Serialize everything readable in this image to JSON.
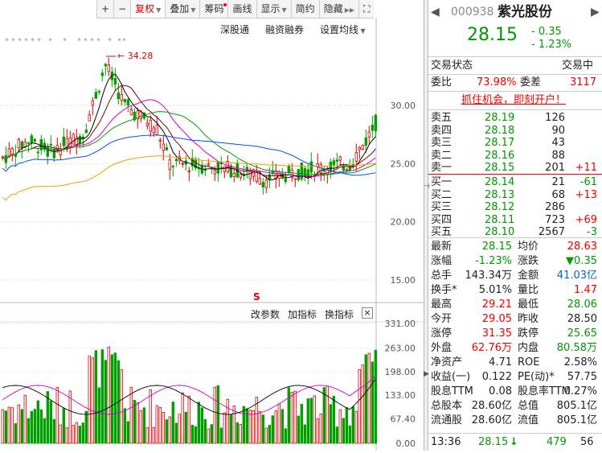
{
  "toolbar": {
    "items": [
      "+",
      "−",
      "复权",
      "叠加",
      "筹码",
      "画线",
      "显示",
      "简约",
      "隐藏"
    ],
    "fq_label": "复权",
    "overlay_label": "叠加",
    "chip_label": "筹码",
    "draw_label": "画线",
    "display_label": "显示",
    "simple_label": "简约",
    "hide_label": "隐藏"
  },
  "chart": {
    "links": {
      "sz": "深股通",
      "margin": "融资融券",
      "ma_setting": "设置均线"
    },
    "high_marker": "34.28",
    "price_ticks": [
      "30.00",
      "25.00",
      "20.00",
      "15.00"
    ],
    "s_marker": "S",
    "indicator_menu": {
      "change": "改参数",
      "add": "加指标",
      "swap": "换指标"
    },
    "vol_ticks": [
      "331.00",
      "263.00",
      "198.00",
      "133.00",
      "67.40",
      "0.00"
    ],
    "colors": {
      "up": "#e00000",
      "down": "#00a000",
      "ma5": "#000000",
      "ma10": "#800000",
      "ma20": "#d000d0",
      "ma30": "#00a000",
      "ma60": "#0050ff",
      "ma120": "#f0a000"
    }
  },
  "quote": {
    "code": "000938",
    "name": "紫光股份",
    "price": "28.15",
    "change": "- 0.35",
    "change_pct": "- 1.23%",
    "status_label": "交易状态",
    "status_value": "交易中",
    "wb_label": "委比",
    "wb_value": "73.98%",
    "wc_label": "委差",
    "wc_value": "3117",
    "promo": "抓住机会，即刻开户！"
  },
  "asks": [
    {
      "label": "卖五",
      "price": "28.19",
      "vol": "126",
      "chg": ""
    },
    {
      "label": "卖四",
      "price": "28.18",
      "vol": "90",
      "chg": ""
    },
    {
      "label": "卖三",
      "price": "28.17",
      "vol": "43",
      "chg": ""
    },
    {
      "label": "卖二",
      "price": "28.16",
      "vol": "88",
      "chg": ""
    },
    {
      "label": "卖一",
      "price": "28.15",
      "vol": "201",
      "chg": "+11"
    }
  ],
  "bids": [
    {
      "label": "买一",
      "price": "28.14",
      "vol": "21",
      "chg": "-61"
    },
    {
      "label": "买二",
      "price": "28.13",
      "vol": "68",
      "chg": "+13"
    },
    {
      "label": "买三",
      "price": "28.12",
      "vol": "286",
      "chg": ""
    },
    {
      "label": "买四",
      "price": "28.11",
      "vol": "723",
      "chg": "+69"
    },
    {
      "label": "买五",
      "price": "28.10",
      "vol": "2567",
      "chg": "-3"
    }
  ],
  "stats": [
    {
      "l1": "最新",
      "v1": "28.15",
      "c1": "green",
      "l2": "均价",
      "v2": "28.63",
      "c2": "red"
    },
    {
      "l1": "涨幅",
      "v1": "-1.23%",
      "c1": "green",
      "l2": "涨跌",
      "v2": "▼0.35",
      "c2": "green"
    },
    {
      "l1": "总手",
      "v1": "143.34万",
      "c1": "",
      "l2": "金额",
      "v2": "41.03亿",
      "c2": "blue"
    },
    {
      "l1": "换手*",
      "v1": "5.01%",
      "c1": "",
      "l2": "量比",
      "v2": "1.47",
      "c2": "red"
    },
    {
      "l1": "最高",
      "v1": "29.21",
      "c1": "red",
      "l2": "最低",
      "v2": "28.06",
      "c2": "green"
    },
    {
      "l1": "今开",
      "v1": "29.05",
      "c1": "red",
      "l2": "昨收",
      "v2": "28.50",
      "c2": ""
    },
    {
      "l1": "涨停",
      "v1": "31.35",
      "c1": "red",
      "l2": "跌停",
      "v2": "25.65",
      "c2": "green"
    },
    {
      "l1": "外盘",
      "v1": "62.76万",
      "c1": "red",
      "l2": "内盘",
      "v2": "80.58万",
      "c2": "green"
    },
    {
      "l1": "净资产",
      "v1": "4.71",
      "c1": "",
      "l2": "ROE",
      "v2": "2.58%",
      "c2": ""
    },
    {
      "l1": "收益(一)",
      "v1": "0.122",
      "c1": "",
      "l2": "PE(动)*",
      "v2": "57.75",
      "c2": ""
    },
    {
      "l1": "股息TTM",
      "v1": "0.08",
      "c1": "",
      "l2": "股息率TTM",
      "v2": "0.27%",
      "c2": ""
    },
    {
      "l1": "总股本",
      "v1": "28.60亿",
      "c1": "",
      "l2": "总值",
      "v2": "805.1亿",
      "c2": ""
    },
    {
      "l1": "流通股",
      "v1": "28.60亿",
      "c1": "",
      "l2": "流值",
      "v2": "805.1亿",
      "c2": ""
    }
  ],
  "tick": {
    "time": "13:36",
    "price": "28.15",
    "dir": "↓",
    "vol": "479",
    "count": "56"
  }
}
